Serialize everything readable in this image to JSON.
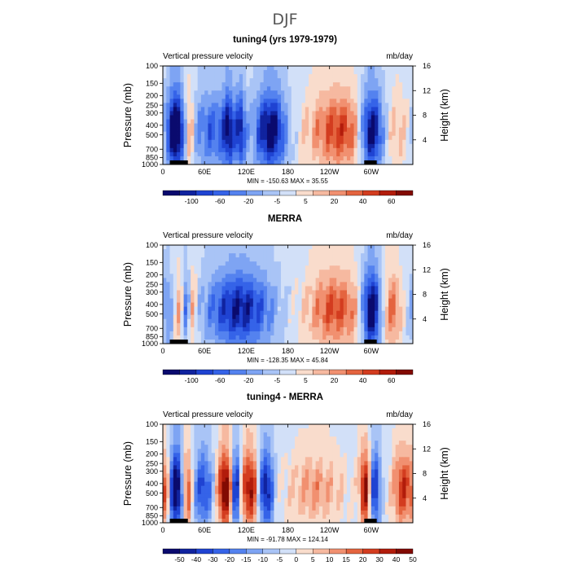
{
  "figure_title": "DJF",
  "chart_data": [
    {
      "type": "heatmap",
      "title": "tuning4 (yrs 1979-1979)",
      "left_label": "Vertical pressure velocity",
      "units": "mb/day",
      "ylabel": "Pressure (mb)",
      "ylabel_right": "Height (km)",
      "xticks": [
        "0",
        "60E",
        "120E",
        "180",
        "120W",
        "60W"
      ],
      "xtick_values": [
        0,
        60,
        120,
        180,
        240,
        300
      ],
      "xlim": [
        0,
        360
      ],
      "yticks": [
        "100",
        "150",
        "200",
        "250",
        "300",
        "400",
        "500",
        "700",
        "850",
        "1000"
      ],
      "ytick_values": [
        100,
        150,
        200,
        250,
        300,
        400,
        500,
        700,
        850,
        1000
      ],
      "ylim": [
        1000,
        100
      ],
      "right_ticks": [
        "4",
        "8",
        "12",
        "16"
      ],
      "right_tick_values": [
        4,
        8,
        12,
        16
      ],
      "stats": "MIN = -150.63   MAX =  35.55",
      "min": -150.63,
      "max": 35.55,
      "colorbar_labels": [
        "-100",
        "-60",
        "-20",
        "-5",
        "5",
        "20",
        "40",
        "60"
      ],
      "colorbar_levels": [
        -100,
        -80,
        -60,
        -40,
        -20,
        -10,
        -5,
        0,
        5,
        10,
        20,
        30,
        40,
        50,
        60
      ],
      "features": [
        {
          "lon": 18,
          "width": 9,
          "amp": -1.0
        },
        {
          "lon": 38,
          "width": 5,
          "amp": 0.45
        },
        {
          "lon": 72,
          "width": 22,
          "amp": -0.45
        },
        {
          "lon": 95,
          "width": 6,
          "amp": -0.55
        },
        {
          "lon": 112,
          "width": 5,
          "amp": -0.6
        },
        {
          "lon": 155,
          "width": 16,
          "amp": -0.85
        },
        {
          "lon": 255,
          "width": 32,
          "amp": 0.55
        },
        {
          "lon": 300,
          "width": 12,
          "amp": -1.0
        },
        {
          "lon": 338,
          "width": 10,
          "amp": 0.2
        }
      ]
    },
    {
      "type": "heatmap",
      "title": "MERRA",
      "left_label": "Vertical pressure velocity",
      "units": "mb/day",
      "ylabel": "Pressure (mb)",
      "ylabel_right": "Height (km)",
      "xticks": [
        "0",
        "60E",
        "120E",
        "180",
        "120W",
        "60W"
      ],
      "xtick_values": [
        0,
        60,
        120,
        180,
        240,
        300
      ],
      "xlim": [
        0,
        360
      ],
      "yticks": [
        "100",
        "150",
        "200",
        "250",
        "300",
        "400",
        "500",
        "700",
        "850",
        "1000"
      ],
      "ytick_values": [
        100,
        150,
        200,
        250,
        300,
        400,
        500,
        700,
        850,
        1000
      ],
      "ylim": [
        1000,
        100
      ],
      "right_ticks": [
        "4",
        "8",
        "12",
        "16"
      ],
      "right_tick_values": [
        4,
        8,
        12,
        16
      ],
      "stats": "MIN = -128.35   MAX =  45.84",
      "min": -128.35,
      "max": 45.84,
      "colorbar_labels": [
        "-100",
        "-60",
        "-20",
        "-5",
        "5",
        "20",
        "40",
        "60"
      ],
      "colorbar_levels": [
        -100,
        -80,
        -60,
        -40,
        -20,
        -10,
        -5,
        0,
        5,
        10,
        20,
        30,
        40,
        50,
        60
      ],
      "features": [
        {
          "lon": 10,
          "width": 10,
          "amp": -0.35
        },
        {
          "lon": 22,
          "width": 7,
          "amp": 0.45
        },
        {
          "lon": 34,
          "width": 5,
          "amp": -0.45
        },
        {
          "lon": 42,
          "width": 5,
          "amp": 0.4
        },
        {
          "lon": 110,
          "width": 34,
          "amp": -0.7
        },
        {
          "lon": 248,
          "width": 30,
          "amp": 0.5
        },
        {
          "lon": 300,
          "width": 10,
          "amp": -1.0
        },
        {
          "lon": 330,
          "width": 10,
          "amp": 0.4
        }
      ]
    },
    {
      "type": "heatmap",
      "title": "tuning4 - MERRA",
      "left_label": "Vertical pressure velocity",
      "units": "mb/day",
      "ylabel": "Pressure (mb)",
      "ylabel_right": "Height (km)",
      "xticks": [
        "0",
        "60E",
        "120E",
        "180",
        "120W",
        "60W"
      ],
      "xtick_values": [
        0,
        60,
        120,
        180,
        240,
        300
      ],
      "xlim": [
        0,
        360
      ],
      "yticks": [
        "100",
        "150",
        "200",
        "250",
        "300",
        "400",
        "500",
        "700",
        "850",
        "1000"
      ],
      "ytick_values": [
        100,
        150,
        200,
        250,
        300,
        400,
        500,
        700,
        850,
        1000
      ],
      "ylim": [
        1000,
        100
      ],
      "right_ticks": [
        "4",
        "8",
        "12",
        "16"
      ],
      "right_tick_values": [
        4,
        8,
        12,
        16
      ],
      "stats": "MIN = -91.78   MAX = 124.14",
      "min": -91.78,
      "max": 124.14,
      "colorbar_labels": [
        "-50",
        "-40",
        "-30",
        "-20",
        "-15",
        "-10",
        "-5",
        "0",
        "5",
        "10",
        "15",
        "20",
        "30",
        "40",
        "50"
      ],
      "colorbar_levels": [
        -50,
        -40,
        -30,
        -20,
        -15,
        -10,
        -5,
        0,
        5,
        10,
        15,
        20,
        30,
        40,
        50
      ],
      "features": [
        {
          "lon": 5,
          "width": 6,
          "amp": 0.55
        },
        {
          "lon": 18,
          "width": 8,
          "amp": -1.0
        },
        {
          "lon": 35,
          "width": 5,
          "amp": 0.65
        },
        {
          "lon": 58,
          "width": 10,
          "amp": -0.55
        },
        {
          "lon": 90,
          "width": 8,
          "amp": 0.9
        },
        {
          "lon": 105,
          "width": 5,
          "amp": -0.9
        },
        {
          "lon": 125,
          "width": 10,
          "amp": 0.75
        },
        {
          "lon": 148,
          "width": 8,
          "amp": -0.8
        },
        {
          "lon": 220,
          "width": 30,
          "amp": 0.3
        },
        {
          "lon": 292,
          "width": 6,
          "amp": 0.8
        },
        {
          "lon": 305,
          "width": 6,
          "amp": -0.7
        },
        {
          "lon": 345,
          "width": 10,
          "amp": 0.6
        }
      ]
    }
  ]
}
